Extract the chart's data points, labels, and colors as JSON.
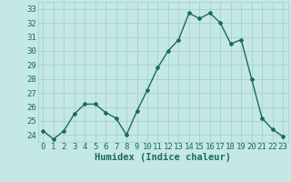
{
  "x": [
    0,
    1,
    2,
    3,
    4,
    5,
    6,
    7,
    8,
    9,
    10,
    11,
    12,
    13,
    14,
    15,
    16,
    17,
    18,
    19,
    20,
    21,
    22,
    23
  ],
  "y": [
    24.3,
    23.7,
    24.3,
    25.5,
    26.2,
    26.2,
    25.6,
    25.2,
    24.0,
    25.7,
    27.2,
    28.8,
    30.0,
    30.8,
    32.7,
    32.3,
    32.7,
    32.0,
    30.5,
    30.8,
    28.0,
    25.2,
    24.4,
    23.9
  ],
  "line_color": "#1a6b5a",
  "marker": "D",
  "markersize": 2.0,
  "linewidth": 1.0,
  "bg_color": "#c5e8e5",
  "grid_color": "#9ecece",
  "xlabel": "Humidex (Indice chaleur)",
  "xlim": [
    -0.5,
    23.5
  ],
  "ylim": [
    23.5,
    33.5
  ],
  "yticks": [
    24,
    25,
    26,
    27,
    28,
    29,
    30,
    31,
    32,
    33
  ],
  "xticks": [
    0,
    1,
    2,
    3,
    4,
    5,
    6,
    7,
    8,
    9,
    10,
    11,
    12,
    13,
    14,
    15,
    16,
    17,
    18,
    19,
    20,
    21,
    22,
    23
  ],
  "xlabel_fontsize": 7.5,
  "tick_fontsize": 6.5,
  "font_color": "#1a6b5a"
}
